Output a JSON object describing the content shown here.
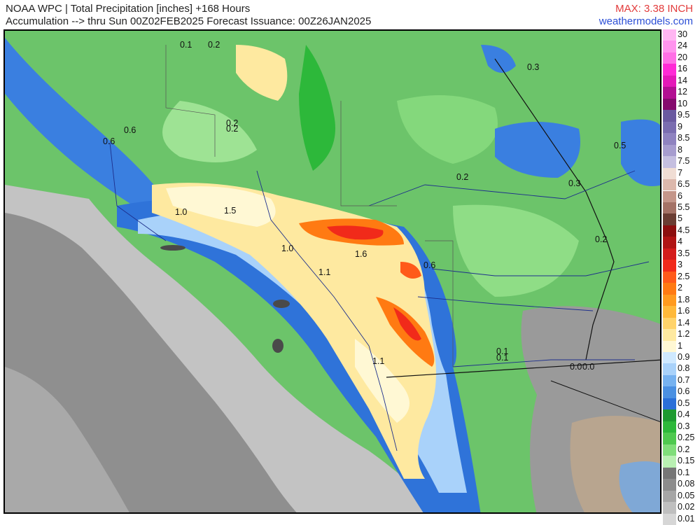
{
  "header": {
    "line1": "NOAA WPC | Total Precipitation [inches] +168 Hours",
    "line2": "Accumulation --> thru Sun 00Z02FEB2025   Forecast Issuance: 00Z26JAN2025",
    "max_label": "MAX: 3.38 INCH",
    "site": "weathermodels.com"
  },
  "colors": {
    "max_label": "#e23a3a",
    "site": "#2c4fd6",
    "ocean_gray": "#8f8f8f",
    "land_green": "#6cc46a",
    "heavy_orange": "#f06a1c",
    "moderate_blue": "#2f73d9"
  },
  "map_labels": [
    "0.1",
    "0.2",
    "0.2",
    "0.2",
    "0.3",
    "0.6",
    "0.6",
    "0.5",
    "1.0",
    "1.5",
    "0.2",
    "0.3",
    "1.0",
    "1.6",
    "1.1",
    "0.2",
    "0.6",
    "0.1",
    "0.1",
    "0.0",
    "0.0",
    "1.1"
  ],
  "legend": [
    {
      "label": "30",
      "color": "#ffb6f2"
    },
    {
      "label": "24",
      "color": "#ff94ee"
    },
    {
      "label": "20",
      "color": "#ff6fe6"
    },
    {
      "label": "16",
      "color": "#ff2ad6"
    },
    {
      "label": "14",
      "color": "#e418b8"
    },
    {
      "label": "12",
      "color": "#b20e92"
    },
    {
      "label": "10",
      "color": "#850a6e"
    },
    {
      "label": "9.5",
      "color": "#6a5aa0"
    },
    {
      "label": "9",
      "color": "#7a6db0"
    },
    {
      "label": "8.5",
      "color": "#8f83c0"
    },
    {
      "label": "8",
      "color": "#a79dcf"
    },
    {
      "label": "7.5",
      "color": "#c5bfe0"
    },
    {
      "label": "7",
      "color": "#f0ddd4"
    },
    {
      "label": "6.5",
      "color": "#dcb8ac"
    },
    {
      "label": "6",
      "color": "#c4968a"
    },
    {
      "label": "5.5",
      "color": "#a47266"
    },
    {
      "label": "5",
      "color": "#6a3d33"
    },
    {
      "label": "4.5",
      "color": "#8c0f0f"
    },
    {
      "label": "4",
      "color": "#b01414"
    },
    {
      "label": "3.5",
      "color": "#d41b1b"
    },
    {
      "label": "3",
      "color": "#f12a1a"
    },
    {
      "label": "2.5",
      "color": "#ff5a1a"
    },
    {
      "label": "2",
      "color": "#ff7a12"
    },
    {
      "label": "1.8",
      "color": "#ff9a1e"
    },
    {
      "label": "1.6",
      "color": "#ffb93a"
    },
    {
      "label": "1.4",
      "color": "#ffd36a"
    },
    {
      "label": "1.2",
      "color": "#fee9a0"
    },
    {
      "label": "1",
      "color": "#fff8d4"
    },
    {
      "label": "0.9",
      "color": "#cfe9ff"
    },
    {
      "label": "0.8",
      "color": "#a9d2fa"
    },
    {
      "label": "0.7",
      "color": "#76b2f0"
    },
    {
      "label": "0.6",
      "color": "#4a90e2"
    },
    {
      "label": "0.5",
      "color": "#2a6fd8"
    },
    {
      "label": "0.4",
      "color": "#1e9a30"
    },
    {
      "label": "0.3",
      "color": "#2db83a"
    },
    {
      "label": "0.25",
      "color": "#4fc94f"
    },
    {
      "label": "0.2",
      "color": "#80de7a"
    },
    {
      "label": "0.15",
      "color": "#b9f0b2"
    },
    {
      "label": "0.1",
      "color": "#767676"
    },
    {
      "label": "0.08",
      "color": "#8c8c8c"
    },
    {
      "label": "0.05",
      "color": "#a6a6a6"
    },
    {
      "label": "0.02",
      "color": "#bfbfbf"
    },
    {
      "label": "0.01",
      "color": "#d6d6d6"
    }
  ]
}
